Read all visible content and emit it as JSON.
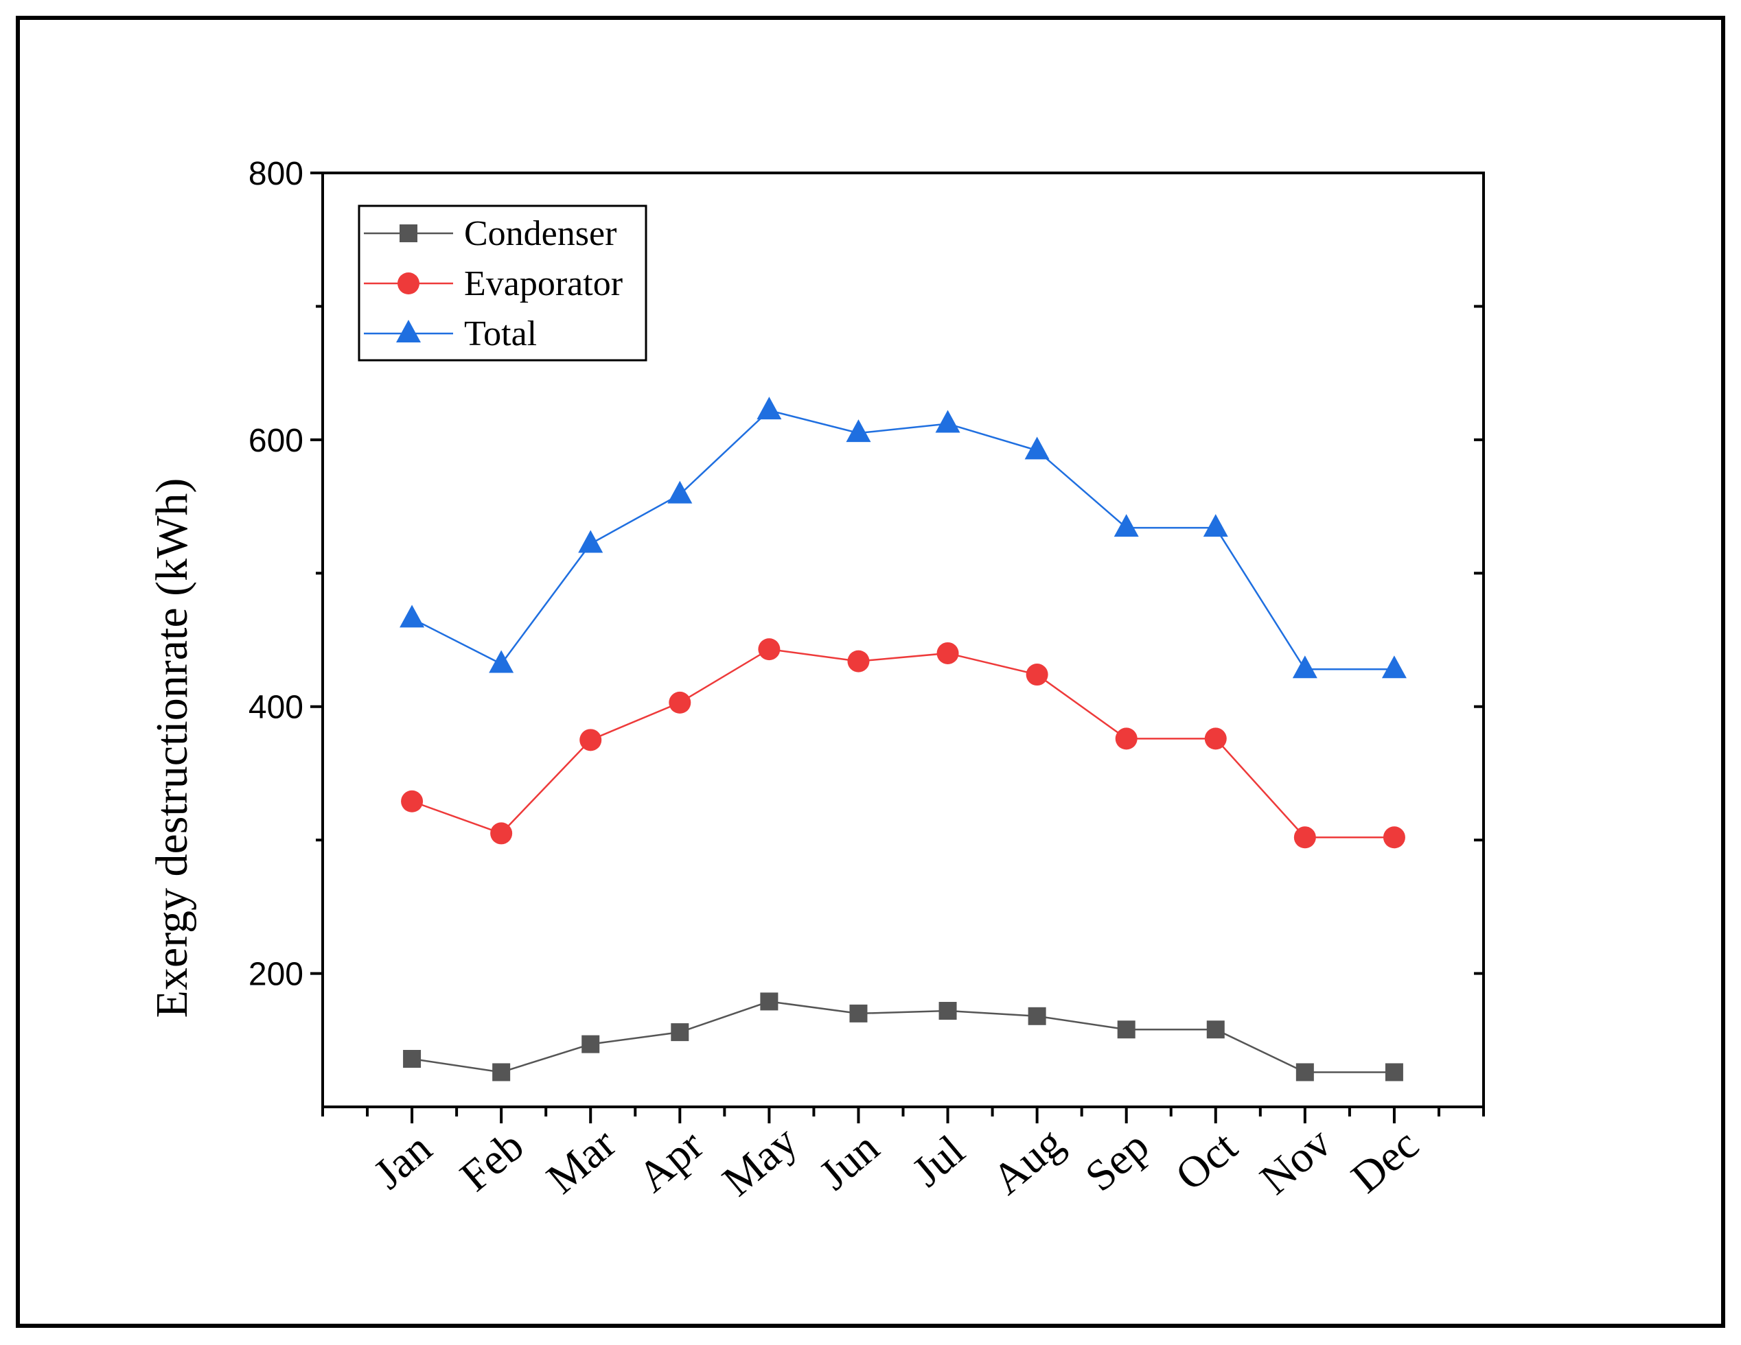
{
  "chart_data": {
    "type": "line",
    "title": "",
    "xlabel": "",
    "ylabel": "Exergy destructionrate (kWh)",
    "categories": [
      "Jan",
      "Feb",
      "Mar",
      "Apr",
      "May",
      "Jun",
      "Jul",
      "Aug",
      "Sep",
      "Oct",
      "Nov",
      "Dec"
    ],
    "ylim": [
      100,
      800
    ],
    "yticks": [
      200,
      400,
      600,
      800
    ],
    "y_tick_labels": [
      "200",
      "400",
      "600",
      "800"
    ],
    "grid": false,
    "legend_position": "top-left",
    "series": [
      {
        "name": "Condenser",
        "marker": "square",
        "color": "#555555",
        "values": [
          136,
          126,
          147,
          156,
          179,
          170,
          172,
          168,
          158,
          158,
          126,
          126
        ]
      },
      {
        "name": "Evaporator",
        "marker": "circle",
        "color": "#ee3a3a",
        "values": [
          329,
          305,
          375,
          403,
          443,
          434,
          440,
          424,
          376,
          376,
          302,
          302
        ]
      },
      {
        "name": "Total",
        "marker": "triangle",
        "color": "#1f6fe0",
        "values": [
          466,
          432,
          522,
          559,
          622,
          605,
          612,
          592,
          534,
          534,
          428,
          428
        ]
      }
    ]
  }
}
